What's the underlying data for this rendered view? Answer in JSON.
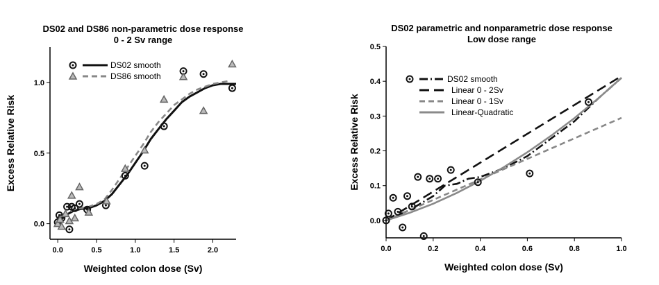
{
  "chart_data": [
    {
      "type": "scatter",
      "title": "DS02 and DS86 non-parametric dose response",
      "subtitle": "0 - 2 Sv range",
      "xlabel": "Weighted colon dose (Sv)",
      "ylabel": "Excess Relative Risk",
      "xlim": [
        -0.1,
        2.3
      ],
      "ylim": [
        -0.11,
        1.25
      ],
      "xticks": [
        "0.0",
        "0.5",
        "1.0",
        "1.5",
        "2.0"
      ],
      "yticks": [
        "0.0",
        "0.5",
        "1.0"
      ],
      "legend_position": "top-left",
      "series": [
        {
          "name": "DS02 smooth",
          "marker": "circle",
          "line": "solid",
          "color": "#111111",
          "points": [
            [
              0,
              0.01
            ],
            [
              0.02,
              0.06
            ],
            [
              0.05,
              0.04
            ],
            [
              0.12,
              0.12
            ],
            [
              0.15,
              -0.04
            ],
            [
              0.18,
              0.12
            ],
            [
              0.22,
              0.11
            ],
            [
              0.28,
              0.14
            ],
            [
              0.38,
              0.1
            ],
            [
              0.62,
              0.13
            ],
            [
              0.87,
              0.34
            ],
            [
              1.12,
              0.41
            ],
            [
              1.37,
              0.69
            ],
            [
              1.62,
              1.08
            ],
            [
              1.88,
              1.06
            ],
            [
              2.25,
              0.96
            ]
          ],
          "curve": [
            [
              0,
              0
            ],
            [
              0.1,
              0.06
            ],
            [
              0.2,
              0.09
            ],
            [
              0.3,
              0.105
            ],
            [
              0.4,
              0.11
            ],
            [
              0.5,
              0.13
            ],
            [
              0.6,
              0.16
            ],
            [
              0.7,
              0.21
            ],
            [
              0.8,
              0.28
            ],
            [
              0.9,
              0.35
            ],
            [
              1.0,
              0.43
            ],
            [
              1.1,
              0.51
            ],
            [
              1.2,
              0.6
            ],
            [
              1.3,
              0.67
            ],
            [
              1.4,
              0.74
            ],
            [
              1.5,
              0.8
            ],
            [
              1.6,
              0.86
            ],
            [
              1.7,
              0.9
            ],
            [
              1.8,
              0.93
            ],
            [
              1.9,
              0.96
            ],
            [
              2.0,
              0.98
            ],
            [
              2.1,
              0.99
            ],
            [
              2.3,
              0.99
            ]
          ]
        },
        {
          "name": "DS86 smooth",
          "marker": "triangle",
          "line": "dashed",
          "color": "#888888",
          "points": [
            [
              0,
              0.0
            ],
            [
              0.03,
              0.03
            ],
            [
              0.05,
              -0.02
            ],
            [
              0.1,
              0.07
            ],
            [
              0.15,
              0.02
            ],
            [
              0.18,
              0.2
            ],
            [
              0.22,
              0.04
            ],
            [
              0.28,
              0.26
            ],
            [
              0.4,
              0.08
            ],
            [
              0.63,
              0.16
            ],
            [
              0.87,
              0.39
            ],
            [
              1.12,
              0.52
            ],
            [
              1.37,
              0.88
            ],
            [
              1.62,
              1.04
            ],
            [
              1.88,
              0.8
            ],
            [
              2.25,
              1.13
            ]
          ],
          "curve": [
            [
              0,
              0
            ],
            [
              0.1,
              0.06
            ],
            [
              0.2,
              0.1
            ],
            [
              0.3,
              0.11
            ],
            [
              0.4,
              0.12
            ],
            [
              0.5,
              0.14
            ],
            [
              0.6,
              0.17
            ],
            [
              0.7,
              0.24
            ],
            [
              0.8,
              0.32
            ],
            [
              0.9,
              0.4
            ],
            [
              1.0,
              0.48
            ],
            [
              1.1,
              0.56
            ],
            [
              1.2,
              0.65
            ],
            [
              1.3,
              0.72
            ],
            [
              1.4,
              0.78
            ],
            [
              1.5,
              0.84
            ],
            [
              1.6,
              0.88
            ],
            [
              1.7,
              0.92
            ],
            [
              1.8,
              0.95
            ],
            [
              1.9,
              0.97
            ],
            [
              2.0,
              0.99
            ],
            [
              2.2,
              1.01
            ]
          ]
        }
      ]
    },
    {
      "type": "line",
      "title": "DS02 parametric and nonparametric dose response",
      "subtitle": "Low dose range",
      "xlabel": "Weighted colon dose (Sv)",
      "ylabel": "Excess Relative Risk",
      "xlim": [
        0,
        1.0
      ],
      "ylim": [
        -0.05,
        0.5
      ],
      "xticks": [
        "0.0",
        "0.2",
        "0.4",
        "0.6",
        "0.8",
        "1.0"
      ],
      "yticks": [
        "0.0",
        "0.1",
        "0.2",
        "0.3",
        "0.4",
        "0.5"
      ],
      "legend_position": "top-left",
      "points": [
        [
          0,
          0
        ],
        [
          0.01,
          0.02
        ],
        [
          0.03,
          0.065
        ],
        [
          0.05,
          0.025
        ],
        [
          0.07,
          -0.02
        ],
        [
          0.09,
          0.07
        ],
        [
          0.11,
          0.04
        ],
        [
          0.135,
          0.125
        ],
        [
          0.16,
          -0.045
        ],
        [
          0.185,
          0.12
        ],
        [
          0.22,
          0.12
        ],
        [
          0.275,
          0.145
        ],
        [
          0.39,
          0.11
        ],
        [
          0.61,
          0.135
        ],
        [
          0.86,
          0.34
        ]
      ],
      "series": [
        {
          "name": "DS02 smooth",
          "line": "dash-dot",
          "color": "#111111",
          "marker": "circle",
          "curve": [
            [
              0,
              0
            ],
            [
              0.1,
              0.03
            ],
            [
              0.2,
              0.07
            ],
            [
              0.25,
              0.1
            ],
            [
              0.3,
              0.105
            ],
            [
              0.35,
              0.12
            ],
            [
              0.4,
              0.125
            ],
            [
              0.5,
              0.15
            ],
            [
              0.6,
              0.185
            ],
            [
              0.7,
              0.235
            ],
            [
              0.8,
              0.285
            ],
            [
              0.9,
              0.35
            ],
            [
              1.0,
              0.41
            ]
          ]
        },
        {
          "name": "Linear 0 - 2Sv",
          "line": "long-dash",
          "color": "#111111",
          "curve": [
            [
              0,
              0
            ],
            [
              1.0,
              0.415
            ]
          ]
        },
        {
          "name": "Linear 0 - 1Sv",
          "line": "dashed",
          "color": "#888888",
          "curve": [
            [
              0,
              0
            ],
            [
              1.0,
              0.295
            ]
          ]
        },
        {
          "name": "Linear-Quadratic",
          "line": "solid",
          "color": "#8a8a8a",
          "curve": [
            [
              0,
              0
            ],
            [
              0.1,
              0.022
            ],
            [
              0.2,
              0.048
            ],
            [
              0.3,
              0.079
            ],
            [
              0.4,
              0.114
            ],
            [
              0.5,
              0.153
            ],
            [
              0.6,
              0.196
            ],
            [
              0.7,
              0.243
            ],
            [
              0.8,
              0.294
            ],
            [
              0.9,
              0.35
            ],
            [
              1.0,
              0.41
            ]
          ]
        }
      ]
    }
  ]
}
